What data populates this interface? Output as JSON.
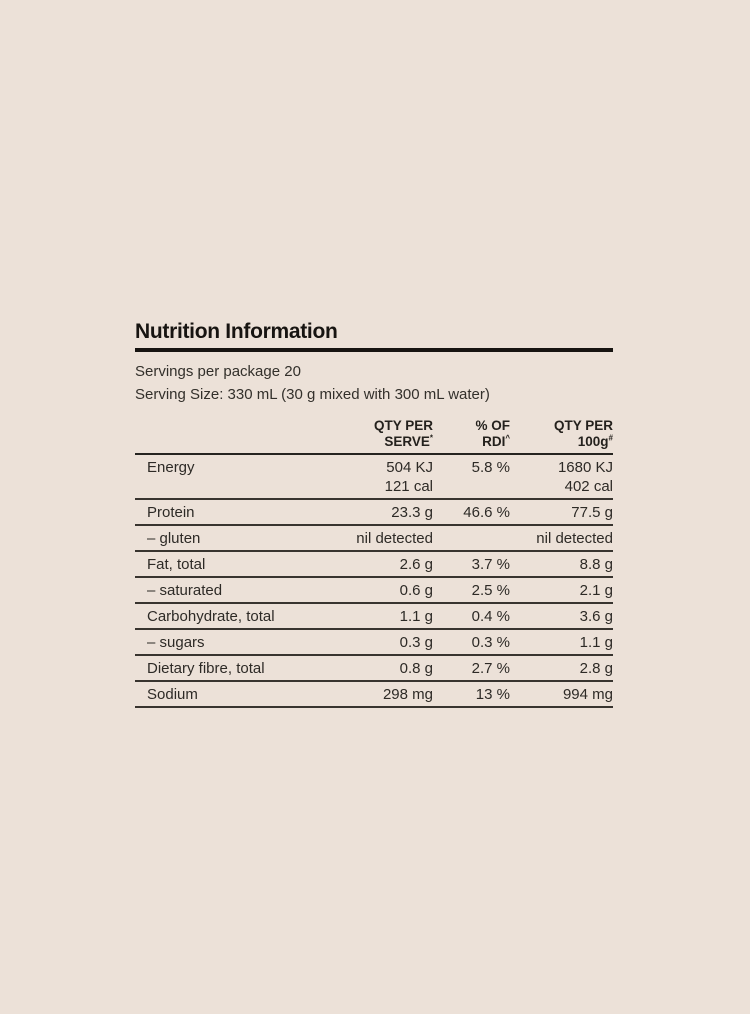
{
  "page": {
    "background_color": "#ece1d8",
    "text_color": "#2d2a26",
    "rule_color": "#38342f"
  },
  "panel": {
    "title": "Nutrition Information",
    "servings_line": "Servings per package 20",
    "serving_size_line": "Serving Size: 330 mL (30 g mixed with 300 mL water)",
    "table": {
      "column_headers": [
        {
          "line1": "QTY PER",
          "line2": "SERVE",
          "sup": "*"
        },
        {
          "line1": "% OF",
          "line2": "RDI",
          "sup": "^"
        },
        {
          "line1": "QTY PER",
          "line2": "100g",
          "sup": "#"
        }
      ],
      "rows": [
        {
          "label": "Energy",
          "serve": "504 KJ",
          "rdi": "5.8 %",
          "per100": "1680 KJ",
          "serve_line2": "121 cal",
          "per100_line2": "402 cal"
        },
        {
          "label": "Protein",
          "serve": "23.3 g",
          "rdi": "46.6 %",
          "per100": "77.5 g"
        },
        {
          "label": "– gluten",
          "serve": "nil detected",
          "rdi": "",
          "per100": "nil detected"
        },
        {
          "label": "Fat, total",
          "serve": "2.6 g",
          "rdi": "3.7 %",
          "per100": "8.8 g"
        },
        {
          "label": "– saturated",
          "serve": "0.6 g",
          "rdi": "2.5 %",
          "per100": "2.1 g"
        },
        {
          "label": "Carbohydrate, total",
          "serve": "1.1 g",
          "rdi": "0.4 %",
          "per100": "3.6 g"
        },
        {
          "label": "– sugars",
          "serve": "0.3 g",
          "rdi": "0.3 %",
          "per100": "1.1 g"
        },
        {
          "label": "Dietary fibre, total",
          "serve": "0.8 g",
          "rdi": "2.7 %",
          "per100": "2.8 g"
        },
        {
          "label": "Sodium",
          "serve": "298 mg",
          "rdi": "13 %",
          "per100": "994 mg"
        }
      ]
    }
  }
}
